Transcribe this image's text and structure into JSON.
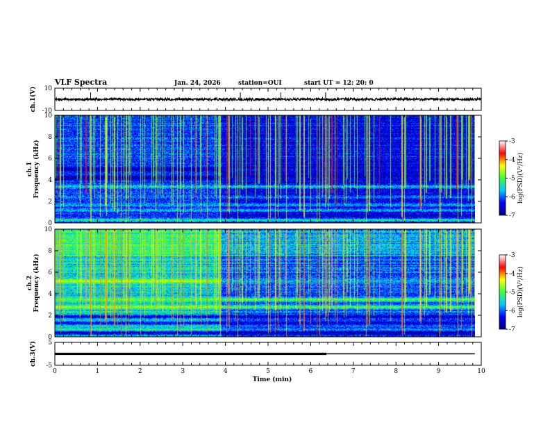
{
  "header": {
    "title": "VLF Spectra",
    "date": "Jan. 24, 2026",
    "station": "station=OUI",
    "start": "start  UT =   12: 20: 0"
  },
  "chart_data": [
    {
      "type": "line",
      "name": "ch1-waveform",
      "ylabel": "ch.1(V)",
      "ylim": [
        -10,
        10
      ],
      "y_ticks": [
        "10",
        "-10"
      ],
      "level": 0,
      "noise_amplitude": 0.7,
      "spikes": [
        0.84,
        4.35,
        5.3,
        6.35
      ]
    },
    {
      "type": "heatmap",
      "name": "ch1-spectrogram",
      "ylabel": "ch.1\nFrequency  (kHz)",
      "ylim": [
        0,
        10
      ],
      "y_ticks": [
        "0",
        "2",
        "4",
        "6",
        "8",
        "10"
      ],
      "colorbar": {
        "label": "log(PSD)(V²/Hz)",
        "range": [
          -7,
          -3
        ],
        "ticks": [
          "-3",
          "-4",
          "-5",
          "-6",
          "-7"
        ]
      },
      "mode_change_min": 3.9,
      "base_level": -6.4,
      "bands": [
        {
          "freq": 0.3,
          "level": -5.2
        },
        {
          "freq": 1.2,
          "level": -5.6
        },
        {
          "freq": 1.7,
          "level": -5.7
        },
        {
          "freq": 2.4,
          "level": -5.9
        },
        {
          "freq": 3.4,
          "level": -5.5
        },
        {
          "freq": 4.2,
          "level": -6.9
        },
        {
          "freq": 5.0,
          "level": -6.8
        }
      ]
    },
    {
      "type": "heatmap",
      "name": "ch2-spectrogram",
      "ylabel": "ch.2\nFrequency  (kHz)",
      "ylim": [
        0,
        10
      ],
      "y_ticks": [
        "0",
        "2",
        "4",
        "6",
        "8",
        "10"
      ],
      "colorbar": {
        "label": "log(PSD)(V²/Hz)",
        "range": [
          -7,
          -3
        ],
        "ticks": [
          "-3",
          "-4",
          "-5",
          "-6",
          "-7"
        ]
      },
      "mode_change_min": 3.9,
      "base_level": -5.6,
      "bands": [
        {
          "freq": 0.4,
          "level": -6.9
        },
        {
          "freq": 1.3,
          "level": -6.6
        },
        {
          "freq": 1.9,
          "level": -6.8
        },
        {
          "freq": 2.8,
          "level": -4.6
        },
        {
          "freq": 3.5,
          "level": -4.9
        },
        {
          "freq": 5.2,
          "level": -4.5
        }
      ]
    },
    {
      "type": "line",
      "name": "ch3-waveform",
      "ylabel": "ch.3(V)",
      "xlabel": "Time  (min)",
      "ylim": [
        -5,
        5
      ],
      "y_ticks": [
        "5",
        "-5"
      ],
      "level": 0,
      "segments": [
        {
          "x": [
            0,
            6.37
          ],
          "thick": true
        },
        {
          "x": [
            6.37,
            9.85
          ],
          "thick": false
        }
      ],
      "x_ticks": [
        "0",
        "1",
        "2",
        "3",
        "4",
        "5",
        "6",
        "7",
        "8",
        "9",
        "10"
      ],
      "xlim": [
        0,
        10
      ]
    }
  ],
  "colors": {
    "cmap": [
      "#00007f",
      "#0000ff",
      "#00c8ff",
      "#3cff3c",
      "#ffff00",
      "#ff0000",
      "#ffffff"
    ]
  }
}
